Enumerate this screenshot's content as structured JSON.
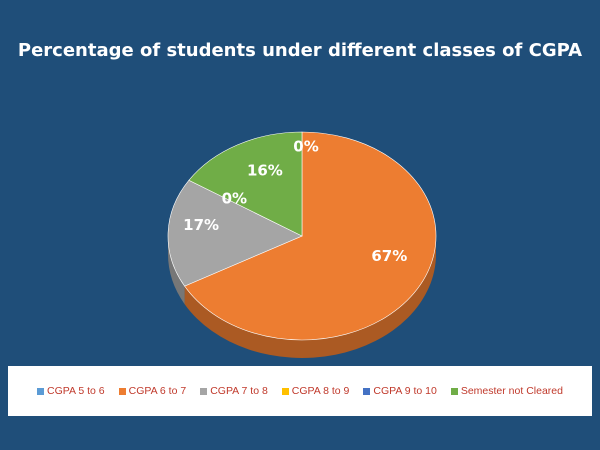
{
  "chart_data": {
    "type": "pie",
    "title": "Percentage of students under different classes of CGPA",
    "categories": [
      "CGPA 5 to 6",
      "CGPA 6 to 7",
      "CGPA 7 to 8",
      "CGPA 8 to 9",
      "CGPA 9 to 10",
      "Semester not Cleared"
    ],
    "values": [
      0,
      67,
      17,
      0,
      0,
      16
    ],
    "data_labels": [
      "",
      "67%",
      "17%",
      "0%",
      "",
      "16%"
    ],
    "extra_label": "0%",
    "colors": [
      "#5B9BD5",
      "#ED7D31",
      "#A5A5A5",
      "#FFC000",
      "#4472C4",
      "#70AD47"
    ],
    "legend_position": "bottom",
    "style": "3d"
  }
}
